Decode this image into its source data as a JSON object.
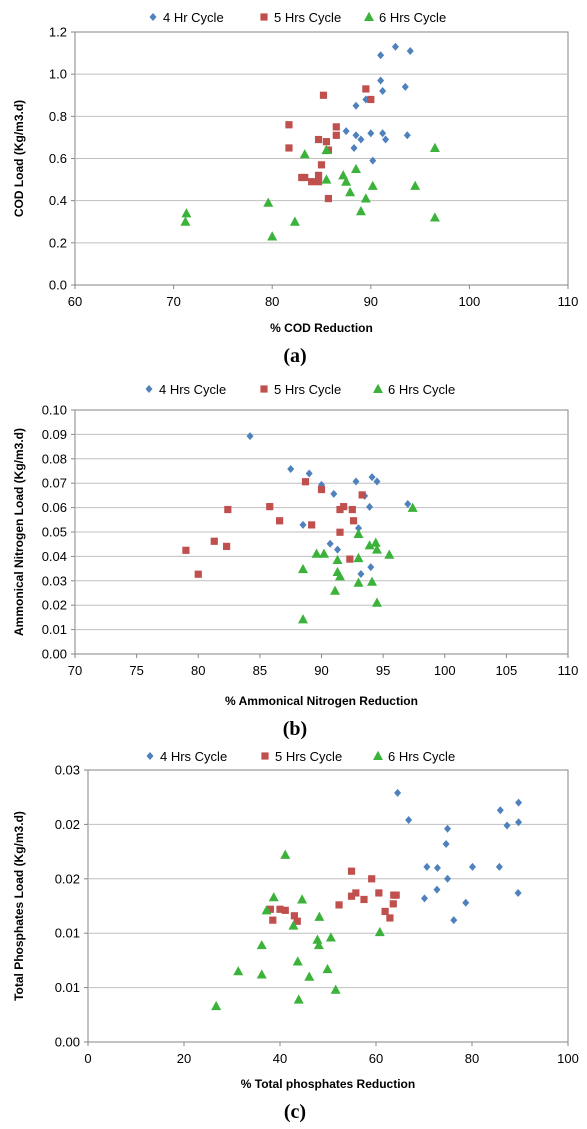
{
  "colors": {
    "s4": "#4F81BD",
    "s5": "#C0504D",
    "s6": "#3BB33B",
    "axis": "#868686",
    "grid": "#BFBFBF"
  },
  "chart_data": [
    {
      "panel_label": "(a)",
      "type": "scatter",
      "xlabel": "% COD Reduction",
      "ylabel": "COD Load (Kg/m3.d)",
      "xlim": [
        60,
        110
      ],
      "ylim": [
        0,
        1.2
      ],
      "xticks": [
        "60",
        "70",
        "80",
        "90",
        "100",
        "110"
      ],
      "yticks": [
        "0.0",
        "0.2",
        "0.4",
        "0.6",
        "0.8",
        "1.0",
        "1.2"
      ],
      "grid": "horizontal",
      "legend": "top",
      "series": [
        {
          "name": "4 Hr Cycle",
          "marker": "diamond",
          "points": [
            [
              92.5,
              1.13
            ],
            [
              94,
              1.11
            ],
            [
              91,
              1.09
            ],
            [
              91,
              0.97
            ],
            [
              91.2,
              0.92
            ],
            [
              93.5,
              0.94
            ],
            [
              88.5,
              0.85
            ],
            [
              89.5,
              0.88
            ],
            [
              88.5,
              0.71
            ],
            [
              87.5,
              0.73
            ],
            [
              90,
              0.72
            ],
            [
              91.2,
              0.72
            ],
            [
              91.5,
              0.69
            ],
            [
              89,
              0.69
            ],
            [
              93.7,
              0.71
            ],
            [
              88.3,
              0.65
            ],
            [
              90.2,
              0.59
            ]
          ]
        },
        {
          "name": "5 Hrs Cycle",
          "marker": "square",
          "points": [
            [
              89.5,
              0.93
            ],
            [
              85.2,
              0.9
            ],
            [
              90,
              0.88
            ],
            [
              81.7,
              0.76
            ],
            [
              86.5,
              0.75
            ],
            [
              85.5,
              0.68
            ],
            [
              86.5,
              0.71
            ],
            [
              84.7,
              0.69
            ],
            [
              81.7,
              0.65
            ],
            [
              85.7,
              0.64
            ],
            [
              85,
              0.57
            ],
            [
              83,
              0.51
            ],
            [
              83.3,
              0.51
            ],
            [
              84.7,
              0.52
            ],
            [
              84,
              0.49
            ],
            [
              84.7,
              0.49
            ],
            [
              85.7,
              0.41
            ]
          ]
        },
        {
          "name": "6 Hrs Cycle",
          "marker": "triangle",
          "points": [
            [
              85.5,
              0.64
            ],
            [
              83.3,
              0.62
            ],
            [
              96.5,
              0.65
            ],
            [
              88.5,
              0.55
            ],
            [
              87.2,
              0.52
            ],
            [
              85.5,
              0.5
            ],
            [
              87.5,
              0.49
            ],
            [
              90.2,
              0.47
            ],
            [
              94.5,
              0.47
            ],
            [
              87.9,
              0.44
            ],
            [
              89.5,
              0.41
            ],
            [
              79.6,
              0.39
            ],
            [
              71.3,
              0.34
            ],
            [
              89,
              0.35
            ],
            [
              71.2,
              0.3
            ],
            [
              82.3,
              0.3
            ],
            [
              96.5,
              0.32
            ],
            [
              80,
              0.23
            ]
          ]
        }
      ]
    },
    {
      "panel_label": "(b)",
      "type": "scatter",
      "xlabel": "% Ammonical Nitrogen Reduction",
      "ylabel": "Ammonical Nitrogen Load (Kg/m3.d)",
      "xlim": [
        70,
        110
      ],
      "ylim": [
        0,
        0.1
      ],
      "xticks": [
        "70",
        "75",
        "80",
        "85",
        "90",
        "95",
        "100",
        "105",
        "110"
      ],
      "yticks": [
        "0.00",
        "0.01",
        "0.02",
        "0.03",
        "0.04",
        "0.05",
        "0.06",
        "0.07",
        "0.08",
        "0.09",
        "0.10"
      ],
      "grid": "horizontal",
      "legend": "top",
      "series": [
        {
          "name": "4 Hrs Cycle",
          "marker": "diamond",
          "points": [
            [
              84.2,
              0.0893
            ],
            [
              87.5,
              0.0758
            ],
            [
              89,
              0.074
            ],
            [
              90,
              0.0693
            ],
            [
              92.8,
              0.0707
            ],
            [
              94.1,
              0.0725
            ],
            [
              94.5,
              0.0707
            ],
            [
              91,
              0.0656
            ],
            [
              93.5,
              0.0648
            ],
            [
              97,
              0.0615
            ],
            [
              93.9,
              0.0603
            ],
            [
              93,
              0.0516
            ],
            [
              88.5,
              0.0529
            ],
            [
              90.7,
              0.0452
            ],
            [
              91.3,
              0.0428
            ],
            [
              94,
              0.0356
            ],
            [
              93.2,
              0.0328
            ]
          ]
        },
        {
          "name": "5 Hrs Cycle",
          "marker": "square",
          "points": [
            [
              88.7,
              0.0706
            ],
            [
              90,
              0.0674
            ],
            [
              93.3,
              0.0652
            ],
            [
              85.8,
              0.0604
            ],
            [
              91.8,
              0.0604
            ],
            [
              91.5,
              0.0592
            ],
            [
              92.5,
              0.0592
            ],
            [
              82.4,
              0.0592
            ],
            [
              86.6,
              0.0546
            ],
            [
              92.6,
              0.0546
            ],
            [
              89.2,
              0.0529
            ],
            [
              91.5,
              0.0499
            ],
            [
              92.3,
              0.0389
            ],
            [
              81.3,
              0.0462
            ],
            [
              82.3,
              0.0441
            ],
            [
              79,
              0.0425
            ],
            [
              80,
              0.0327
            ]
          ]
        },
        {
          "name": "6 Hrs Cycle",
          "marker": "triangle",
          "points": [
            [
              97.4,
              0.0599
            ],
            [
              93,
              0.0492
            ],
            [
              94.4,
              0.0456
            ],
            [
              93.9,
              0.0445
            ],
            [
              94.5,
              0.0428
            ],
            [
              95.5,
              0.0407
            ],
            [
              89.6,
              0.0411
            ],
            [
              90.2,
              0.0411
            ],
            [
              91.3,
              0.0385
            ],
            [
              93,
              0.0393
            ],
            [
              88.5,
              0.0348
            ],
            [
              91.3,
              0.0336
            ],
            [
              91.5,
              0.0318
            ],
            [
              94.1,
              0.0296
            ],
            [
              93,
              0.0292
            ],
            [
              91.1,
              0.0259
            ],
            [
              94.5,
              0.021
            ],
            [
              88.5,
              0.0142
            ]
          ]
        }
      ]
    },
    {
      "panel_label": "(c)",
      "type": "scatter",
      "xlabel": "% Total phosphates Reduction",
      "ylabel": "Total Phosphates Load (Kg/m3.d)",
      "xlim": [
        0,
        100
      ],
      "ylim": [
        0,
        0.025
      ],
      "xticks": [
        "0",
        "20",
        "40",
        "60",
        "80",
        "100"
      ],
      "yticks": [
        "0.00",
        "0.01",
        "0.01",
        "0.02",
        "0.02",
        "0.03"
      ],
      "grid": "horizontal",
      "legend": "top",
      "series": [
        {
          "name": "4 Hrs Cycle",
          "marker": "diamond",
          "points": [
            [
              64.5,
              0.0229
            ],
            [
              66.8,
              0.0204
            ],
            [
              89.7,
              0.022
            ],
            [
              85.9,
              0.0213
            ],
            [
              89.7,
              0.0202
            ],
            [
              74.9,
              0.0196
            ],
            [
              87.3,
              0.0199
            ],
            [
              74.6,
              0.0182
            ],
            [
              70.6,
              0.0161
            ],
            [
              72.8,
              0.016
            ],
            [
              80.1,
              0.0161
            ],
            [
              85.7,
              0.0161
            ],
            [
              74.9,
              0.015
            ],
            [
              72.7,
              0.014
            ],
            [
              89.6,
              0.0137
            ],
            [
              70.1,
              0.0132
            ],
            [
              78.7,
              0.0128
            ],
            [
              76.2,
              0.0112
            ]
          ]
        },
        {
          "name": "5 Hrs Cycle",
          "marker": "square",
          "points": [
            [
              54.9,
              0.0157
            ],
            [
              59.1,
              0.015
            ],
            [
              55.8,
              0.0137
            ],
            [
              54.9,
              0.0134
            ],
            [
              60.6,
              0.0137
            ],
            [
              63.7,
              0.0135
            ],
            [
              64.2,
              0.0135
            ],
            [
              57.5,
              0.0131
            ],
            [
              63.6,
              0.0127
            ],
            [
              52.3,
              0.0126
            ],
            [
              61.9,
              0.012
            ],
            [
              62.9,
              0.0114
            ],
            [
              38,
              0.0122
            ],
            [
              40,
              0.0122
            ],
            [
              41.1,
              0.0121
            ],
            [
              43,
              0.0116
            ],
            [
              38.5,
              0.0112
            ],
            [
              43.6,
              0.0111
            ]
          ]
        },
        {
          "name": "6 Hrs Cycle",
          "marker": "triangle",
          "points": [
            [
              41.1,
              0.0172
            ],
            [
              38.7,
              0.0133
            ],
            [
              44.6,
              0.0131
            ],
            [
              48.2,
              0.0115
            ],
            [
              37.2,
              0.0121
            ],
            [
              42.8,
              0.0107
            ],
            [
              50.6,
              0.0096
            ],
            [
              47.8,
              0.0094
            ],
            [
              48.1,
              0.0089
            ],
            [
              60.8,
              0.0101
            ],
            [
              36.2,
              0.0089
            ],
            [
              43.7,
              0.0074
            ],
            [
              31.3,
              0.0065
            ],
            [
              36.2,
              0.0062
            ],
            [
              49.9,
              0.0067
            ],
            [
              46.1,
              0.006
            ],
            [
              51.6,
              0.0048
            ],
            [
              43.9,
              0.0039
            ],
            [
              26.7,
              0.0033
            ]
          ]
        }
      ]
    }
  ]
}
